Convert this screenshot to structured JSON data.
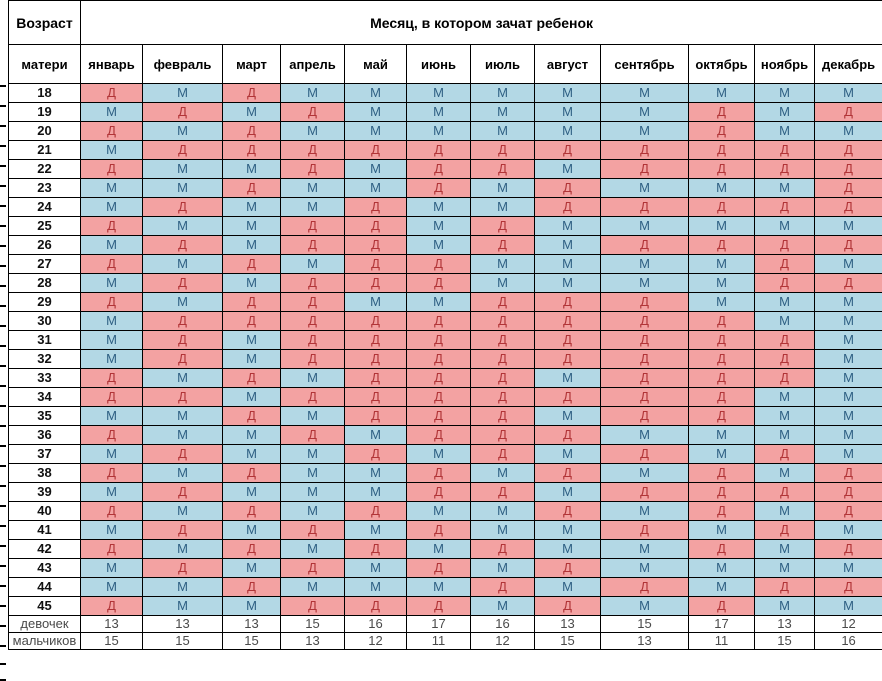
{
  "header": {
    "age_label_line1": "Возраст",
    "age_label_line2": "матери",
    "months_title": "Месяц, в котором зачат ребенок",
    "months": [
      "январь",
      "февраль",
      "март",
      "апрель",
      "май",
      "июнь",
      "июль",
      "август",
      "сентябрь",
      "октябрь",
      "ноябрь",
      "декабрь"
    ]
  },
  "legend": {
    "girl_letter": "Д",
    "boy_letter": "М"
  },
  "colors": {
    "girl_bg": "#F3A2A2",
    "girl_text": "#B13437",
    "boy_bg": "#B3D8E5",
    "boy_text": "#2E5F83",
    "grid_line": "#000000"
  },
  "chart_data": {
    "type": "table",
    "title": "Месяц, в котором зачат ребенок",
    "row_header": "Возраст матери",
    "columns": [
      "январь",
      "февраль",
      "март",
      "апрель",
      "май",
      "июнь",
      "июль",
      "август",
      "сентябрь",
      "октябрь",
      "ноябрь",
      "декабрь"
    ],
    "rows": [
      {
        "age": "18",
        "cells": [
          "Д",
          "М",
          "Д",
          "М",
          "М",
          "М",
          "М",
          "М",
          "М",
          "М",
          "М",
          "М"
        ]
      },
      {
        "age": "19",
        "cells": [
          "М",
          "Д",
          "М",
          "Д",
          "М",
          "М",
          "М",
          "М",
          "М",
          "Д",
          "М",
          "Д"
        ]
      },
      {
        "age": "20",
        "cells": [
          "Д",
          "М",
          "Д",
          "М",
          "М",
          "М",
          "М",
          "М",
          "М",
          "Д",
          "М",
          "М"
        ]
      },
      {
        "age": "21",
        "cells": [
          "М",
          "Д",
          "Д",
          "Д",
          "Д",
          "Д",
          "Д",
          "Д",
          "Д",
          "Д",
          "Д",
          "Д"
        ]
      },
      {
        "age": "22",
        "cells": [
          "Д",
          "М",
          "М",
          "Д",
          "М",
          "Д",
          "Д",
          "М",
          "Д",
          "Д",
          "Д",
          "Д"
        ]
      },
      {
        "age": "23",
        "cells": [
          "М",
          "М",
          "Д",
          "М",
          "М",
          "Д",
          "М",
          "Д",
          "М",
          "М",
          "М",
          "Д"
        ]
      },
      {
        "age": "24",
        "cells": [
          "М",
          "Д",
          "М",
          "М",
          "Д",
          "М",
          "М",
          "Д",
          "Д",
          "Д",
          "Д",
          "Д"
        ]
      },
      {
        "age": "25",
        "cells": [
          "Д",
          "М",
          "М",
          "Д",
          "Д",
          "М",
          "Д",
          "М",
          "М",
          "М",
          "М",
          "М"
        ]
      },
      {
        "age": "26",
        "cells": [
          "М",
          "Д",
          "М",
          "Д",
          "Д",
          "М",
          "Д",
          "М",
          "Д",
          "Д",
          "Д",
          "Д"
        ]
      },
      {
        "age": "27",
        "cells": [
          "Д",
          "М",
          "Д",
          "М",
          "Д",
          "Д",
          "М",
          "М",
          "М",
          "М",
          "Д",
          "М"
        ]
      },
      {
        "age": "28",
        "cells": [
          "М",
          "Д",
          "М",
          "Д",
          "Д",
          "Д",
          "М",
          "М",
          "М",
          "М",
          "Д",
          "Д"
        ]
      },
      {
        "age": "29",
        "cells": [
          "Д",
          "М",
          "Д",
          "Д",
          "М",
          "М",
          "Д",
          "Д",
          "Д",
          "М",
          "М",
          "М"
        ]
      },
      {
        "age": "30",
        "cells": [
          "М",
          "Д",
          "Д",
          "Д",
          "Д",
          "Д",
          "Д",
          "Д",
          "Д",
          "Д",
          "М",
          "М"
        ]
      },
      {
        "age": "31",
        "cells": [
          "М",
          "Д",
          "М",
          "Д",
          "Д",
          "Д",
          "Д",
          "Д",
          "Д",
          "Д",
          "Д",
          "М"
        ]
      },
      {
        "age": "32",
        "cells": [
          "М",
          "Д",
          "М",
          "Д",
          "Д",
          "Д",
          "Д",
          "Д",
          "Д",
          "Д",
          "Д",
          "М"
        ]
      },
      {
        "age": "33",
        "cells": [
          "Д",
          "М",
          "Д",
          "М",
          "Д",
          "Д",
          "Д",
          "М",
          "Д",
          "Д",
          "Д",
          "М"
        ]
      },
      {
        "age": "34",
        "cells": [
          "Д",
          "Д",
          "М",
          "Д",
          "Д",
          "Д",
          "Д",
          "Д",
          "Д",
          "Д",
          "М",
          "М"
        ]
      },
      {
        "age": "35",
        "cells": [
          "М",
          "М",
          "Д",
          "М",
          "Д",
          "Д",
          "Д",
          "М",
          "Д",
          "Д",
          "М",
          "М"
        ]
      },
      {
        "age": "36",
        "cells": [
          "Д",
          "М",
          "М",
          "Д",
          "М",
          "Д",
          "Д",
          "Д",
          "М",
          "М",
          "М",
          "М"
        ]
      },
      {
        "age": "37",
        "cells": [
          "М",
          "Д",
          "М",
          "М",
          "Д",
          "М",
          "Д",
          "М",
          "Д",
          "М",
          "Д",
          "М"
        ]
      },
      {
        "age": "38",
        "cells": [
          "Д",
          "М",
          "Д",
          "М",
          "М",
          "Д",
          "М",
          "Д",
          "М",
          "Д",
          "М",
          "Д"
        ]
      },
      {
        "age": "39",
        "cells": [
          "М",
          "Д",
          "М",
          "М",
          "М",
          "Д",
          "Д",
          "М",
          "Д",
          "Д",
          "Д",
          "Д"
        ]
      },
      {
        "age": "40",
        "cells": [
          "Д",
          "М",
          "Д",
          "М",
          "Д",
          "М",
          "М",
          "Д",
          "М",
          "Д",
          "М",
          "Д"
        ]
      },
      {
        "age": "41",
        "cells": [
          "М",
          "Д",
          "М",
          "Д",
          "М",
          "Д",
          "М",
          "М",
          "Д",
          "М",
          "Д",
          "М"
        ]
      },
      {
        "age": "42",
        "cells": [
          "Д",
          "М",
          "Д",
          "М",
          "Д",
          "М",
          "Д",
          "М",
          "М",
          "Д",
          "М",
          "Д"
        ]
      },
      {
        "age": "43",
        "cells": [
          "М",
          "Д",
          "М",
          "Д",
          "М",
          "Д",
          "М",
          "Д",
          "М",
          "М",
          "М",
          "М"
        ]
      },
      {
        "age": "44",
        "cells": [
          "М",
          "М",
          "Д",
          "М",
          "М",
          "М",
          "Д",
          "М",
          "Д",
          "М",
          "Д",
          "Д"
        ]
      },
      {
        "age": "45",
        "cells": [
          "Д",
          "М",
          "М",
          "Д",
          "Д",
          "Д",
          "М",
          "Д",
          "М",
          "Д",
          "М",
          "М"
        ]
      }
    ],
    "summary_rows": [
      {
        "label": "девочек",
        "values": [
          "13",
          "13",
          "13",
          "15",
          "16",
          "17",
          "16",
          "13",
          "15",
          "17",
          "13",
          "12"
        ]
      },
      {
        "label": "мальчиков",
        "values": [
          "15",
          "15",
          "15",
          "13",
          "12",
          "11",
          "12",
          "15",
          "13",
          "11",
          "15",
          "16"
        ]
      }
    ]
  }
}
